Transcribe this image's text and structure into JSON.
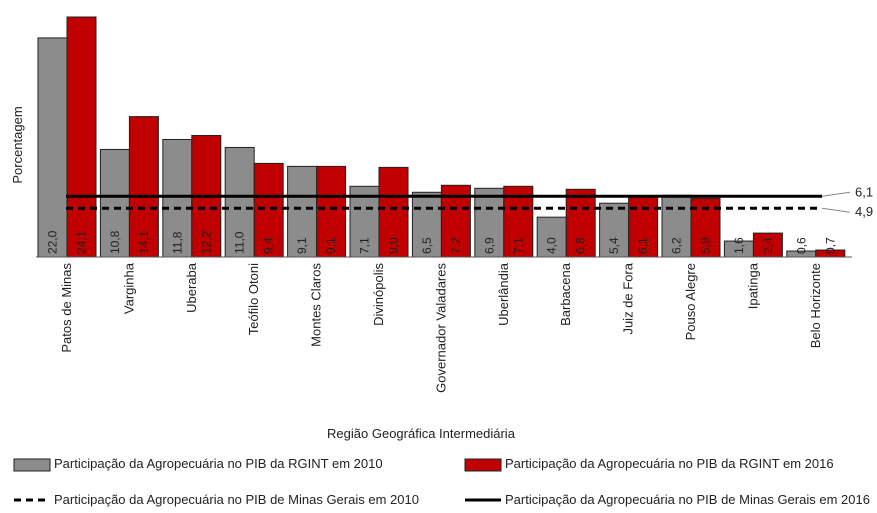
{
  "chart_data": {
    "type": "bar",
    "ylabel": "Porcentagem",
    "xlabel": "Região Geográfica Intermediária",
    "categories": [
      "Patos de Minas",
      "Varginha",
      "Uberaba",
      "Teófilo Otoni",
      "Montes Claros",
      "Divinópolis",
      "Governador Valadares",
      "Uberlândia",
      "Barbacena",
      "Juiz de Fora",
      "Pouso Alegre",
      "Ipatinga",
      "Belo Horizonte"
    ],
    "series": [
      {
        "name": "Participação da Agropecuária no PIB da RGINT em 2010",
        "color": "#8c8c8c",
        "values": [
          22.0,
          10.8,
          11.8,
          11.0,
          9.1,
          7.1,
          6.5,
          6.9,
          4.0,
          5.4,
          6.2,
          1.6,
          0.6
        ],
        "labels": [
          "22,0",
          "10,8",
          "11,8",
          "11,0",
          "9,1",
          "7,1",
          "6,5",
          "6,9",
          "4,0",
          "5,4",
          "6,2",
          "1,6",
          "0,6"
        ]
      },
      {
        "name": "Participação da Agropecuária no PIB da RGINT em 2016",
        "color": "#c00000",
        "values": [
          24.1,
          14.1,
          12.2,
          9.4,
          9.1,
          9.0,
          7.2,
          7.1,
          6.8,
          6.1,
          5.9,
          2.4,
          0.7
        ],
        "labels": [
          "24,1",
          "14,1",
          "12,2",
          "9,4",
          "9,1",
          "9,0",
          "7,2",
          "7,1",
          "6,8",
          "6,1",
          "5,9",
          "2,4",
          "0,7"
        ]
      }
    ],
    "reference_lines": [
      {
        "name": "Participação da Agropecuária no PIB de Minas Gerais em 2010",
        "value": 4.9,
        "label": "4,9",
        "style": "dashed"
      },
      {
        "name": "Participação da Agropecuária no PIB de Minas Gerais em 2016",
        "value": 6.1,
        "label": "6,1",
        "style": "solid"
      }
    ],
    "ylim": [
      0,
      24.1
    ],
    "grid": false,
    "legend": "bottom"
  }
}
